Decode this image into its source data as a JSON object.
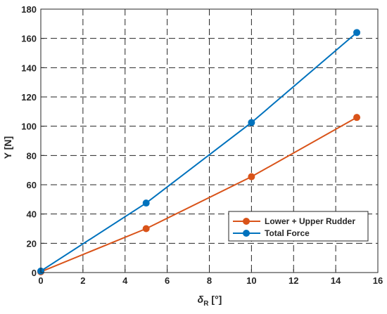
{
  "chart_data": {
    "type": "line",
    "title": "",
    "xlabel": "δ",
    "xlabel_subscript": "R",
    "xlabel_unit": "[°]",
    "ylabel": "Y [N]",
    "xlim": [
      0,
      16
    ],
    "ylim": [
      0,
      180
    ],
    "xticks": [
      0,
      2,
      4,
      6,
      8,
      10,
      12,
      14,
      16
    ],
    "yticks": [
      0,
      20,
      40,
      60,
      80,
      100,
      120,
      140,
      160,
      180
    ],
    "grid": true,
    "legend_position": "bottom-right",
    "series": [
      {
        "name": "Lower + Upper Rudder",
        "color": "#d95319",
        "x": [
          0,
          5,
          10,
          15
        ],
        "y": [
          0.5,
          30,
          65.5,
          106
        ]
      },
      {
        "name": "Total Force",
        "color": "#0072bd",
        "x": [
          0,
          5,
          10,
          15
        ],
        "y": [
          1,
          47.5,
          102.5,
          164
        ]
      }
    ]
  }
}
